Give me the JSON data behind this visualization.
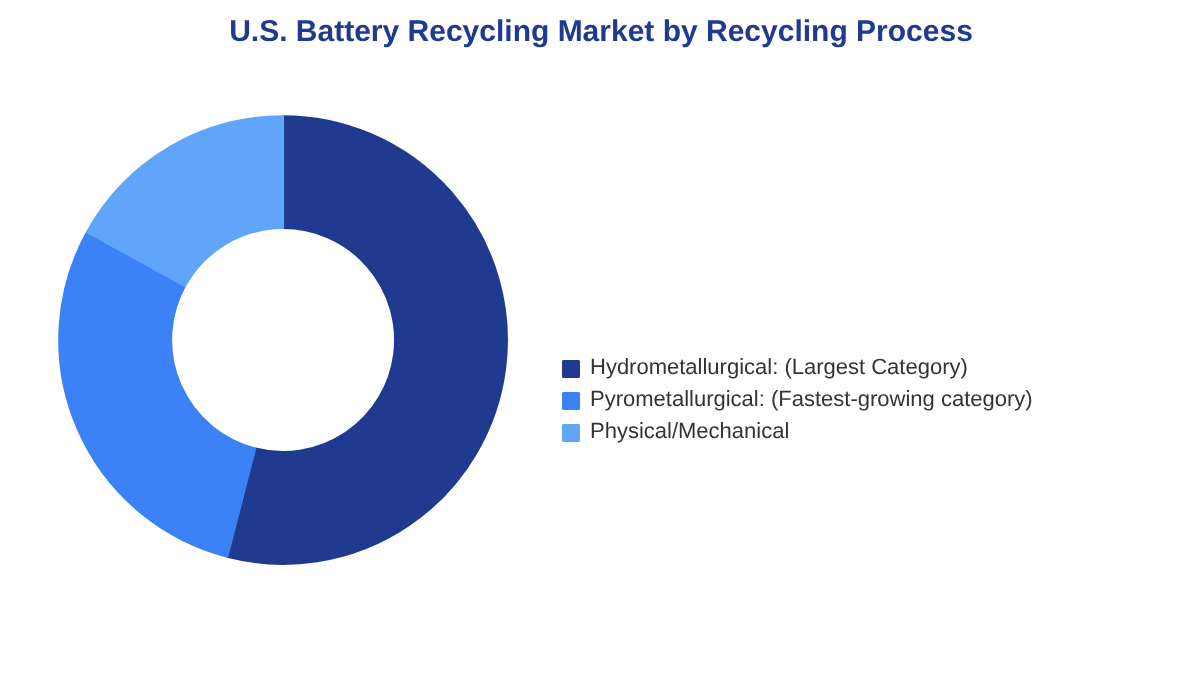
{
  "chart_data": {
    "type": "donut",
    "title": "U.S. Battery Recycling Market by Recycling Process",
    "categories": [
      "Hydrometallurgical: (Largest Category)",
      "Pyrometallurgical: (Fastest-growing category)",
      "Physical/Mechanical"
    ],
    "values": [
      54,
      29,
      17
    ],
    "colors": [
      "#1f3a8f",
      "#3b82f6",
      "#60a5fa"
    ],
    "legend": "right"
  }
}
